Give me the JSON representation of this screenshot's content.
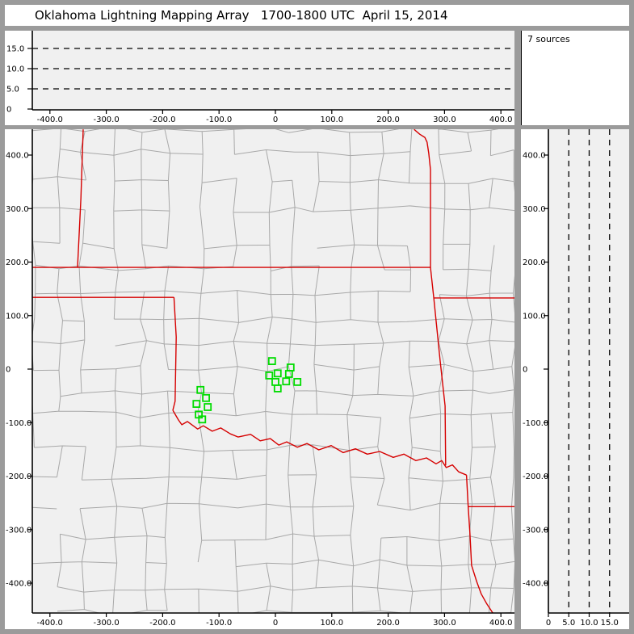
{
  "title": "Oklahoma Lightning Mapping Array   1700-1800 UTC  April 15, 2014",
  "sources_label": "7 sources",
  "colors": {
    "frame": "#9b9b9b",
    "panel": "#ffffff",
    "plot_bg": "#f0f0f0",
    "county": "#a8a8a8",
    "state_border": "#d60000",
    "marker": "#00dc00",
    "axis": "#000000",
    "gridline": "#000000"
  },
  "chart_data": {
    "type": "scatter",
    "title": "Oklahoma Lightning Mapping Array   1700-1800 UTC  April 15, 2014",
    "annotation": "7 sources",
    "units": "km relative to network center",
    "marker_style": "open-green-square",
    "grid": "dashed altitude gridlines at 5, 10, 15 km",
    "legend_position": "none",
    "panels": {
      "top": {
        "id": "altitude-vs-east-west",
        "xlim_km": [
          -431,
          424
        ],
        "ylim_km": [
          0,
          19.5
        ],
        "x_ticks": {
          "values": [
            -400,
            -300,
            -200,
            -100,
            0,
            100,
            200,
            300,
            400
          ],
          "labels": [
            "-400.0",
            "-300.0",
            "-200.0",
            "-100.0",
            "0",
            "100.0",
            "200.0",
            "300.0",
            "400.0"
          ]
        },
        "y_ticks": {
          "values": [
            0,
            5,
            10,
            15
          ],
          "labels": [
            "0",
            "5.0",
            "10.0",
            "15.0"
          ]
        },
        "dashed_gridlines": [
          5,
          10,
          15
        ],
        "points": []
      },
      "map": {
        "id": "plan-view",
        "xlim_km": [
          -431,
          424
        ],
        "ylim_km": [
          -456,
          448
        ],
        "x_ticks": {
          "values": [
            -400,
            -300,
            -200,
            -100,
            0,
            100,
            200,
            300,
            400
          ],
          "labels": [
            "-400.0",
            "-300.0",
            "-200.0",
            "-100.0",
            "0",
            "100.0",
            "200.0",
            "300.0",
            "400.0"
          ]
        },
        "y_ticks": {
          "values": [
            400,
            300,
            200,
            100,
            0,
            -100,
            -200,
            -300,
            -400
          ],
          "labels": [
            "400.0",
            "300.0",
            "200.0",
            "100.0",
            "0",
            "-100.0",
            "-200.0",
            "-300.0",
            "-400.0"
          ]
        },
        "markers_km": [
          [
            -6,
            15
          ],
          [
            27,
            3
          ],
          [
            -11,
            -12
          ],
          [
            4,
            -8
          ],
          [
            24,
            -9
          ],
          [
            0,
            -24
          ],
          [
            19,
            -23
          ],
          [
            39,
            -24
          ],
          [
            4,
            -36
          ],
          [
            -133,
            -39
          ],
          [
            -123,
            -54
          ],
          [
            -140,
            -65
          ],
          [
            -120,
            -71
          ],
          [
            -136,
            -85
          ],
          [
            -130,
            -94
          ]
        ]
      },
      "right": {
        "id": "altitude-vs-north-south",
        "xlim_km": [
          0,
          19.5
        ],
        "ylim_km": [
          -456,
          448
        ],
        "x_ticks": {
          "values": [
            0,
            5,
            10,
            15
          ],
          "labels": [
            "0",
            "5.0",
            "10.0",
            "15.0"
          ]
        },
        "y_ticks": {
          "values": [
            400,
            300,
            200,
            100,
            0,
            -100,
            -200,
            -300,
            -400
          ],
          "labels": [
            "400.0",
            "300.0",
            "200.0",
            "100.0",
            "0",
            "-100.0",
            "-200.0",
            "-300.0",
            "-400.0"
          ]
        },
        "dashed_gridlines": [
          5,
          10,
          15
        ],
        "points": []
      }
    },
    "map_layers": {
      "state_borders_km": [
        [
          [
            -431,
            190
          ],
          [
            275,
            190
          ]
        ],
        [
          [
            -341,
            448
          ],
          [
            -345,
            320
          ],
          [
            -351,
            190
          ]
        ],
        [
          [
            -431,
            134
          ],
          [
            -180,
            134
          ]
        ],
        [
          [
            -180,
            134
          ],
          [
            -176,
            60
          ],
          [
            -178,
            -60
          ],
          [
            -182,
            -77
          ]
        ],
        [
          [
            -182,
            -77
          ],
          [
            -172,
            -95
          ],
          [
            -166,
            -104
          ],
          [
            -156,
            -98
          ],
          [
            -138,
            -112
          ],
          [
            -128,
            -106
          ],
          [
            -112,
            -116
          ],
          [
            -97,
            -110
          ],
          [
            -80,
            -121
          ],
          [
            -66,
            -127
          ],
          [
            -44,
            -122
          ],
          [
            -27,
            -134
          ],
          [
            -9,
            -130
          ],
          [
            6,
            -142
          ],
          [
            20,
            -136
          ],
          [
            39,
            -146
          ],
          [
            56,
            -139
          ],
          [
            77,
            -151
          ],
          [
            99,
            -143
          ],
          [
            120,
            -156
          ],
          [
            142,
            -149
          ],
          [
            163,
            -159
          ],
          [
            185,
            -154
          ],
          [
            209,
            -165
          ],
          [
            228,
            -159
          ],
          [
            249,
            -171
          ],
          [
            268,
            -166
          ],
          [
            285,
            -177
          ],
          [
            295,
            -171
          ],
          [
            303,
            -184
          ],
          [
            314,
            -179
          ],
          [
            325,
            -192
          ],
          [
            339,
            -198
          ]
        ],
        [
          [
            275,
            190
          ],
          [
            281,
            133
          ],
          [
            292,
            18
          ],
          [
            301,
            -69
          ],
          [
            302,
            -180
          ]
        ],
        [
          [
            281,
            133
          ],
          [
            424,
            133
          ]
        ],
        [
          [
            246,
            448
          ],
          [
            256,
            439
          ],
          [
            265,
            433
          ],
          [
            269,
            424
          ],
          [
            272,
            403
          ],
          [
            275,
            373
          ],
          [
            275,
            190
          ]
        ],
        [
          [
            339,
            -198
          ],
          [
            342,
            -257
          ],
          [
            345,
            -306
          ],
          [
            348,
            -367
          ],
          [
            357,
            -397
          ],
          [
            365,
            -420
          ],
          [
            375,
            -439
          ],
          [
            387,
            -458
          ]
        ],
        [
          [
            342,
            -257
          ],
          [
            424,
            -257
          ]
        ]
      ]
    }
  }
}
